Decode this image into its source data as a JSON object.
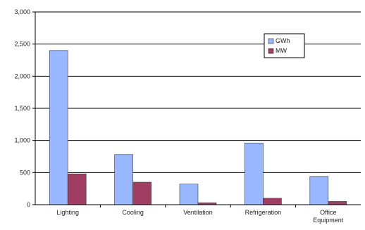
{
  "chart_data": {
    "type": "bar",
    "title": "",
    "xlabel": "",
    "ylabel": "",
    "categories": [
      "Lighting",
      "Cooling",
      "Ventilation",
      "Refrigeration",
      "Office Equipment"
    ],
    "series": [
      {
        "name": "GWh",
        "values": [
          2400,
          780,
          320,
          960,
          440
        ],
        "color": "#99b8ff"
      },
      {
        "name": "MW",
        "values": [
          480,
          350,
          30,
          100,
          50
        ],
        "color": "#a13c63"
      }
    ],
    "ylim": [
      0,
      3000
    ],
    "yticks": [
      0,
      500,
      1000,
      1500,
      2000,
      2500,
      3000
    ],
    "ytick_labels": [
      "0",
      "500",
      "1,000",
      "1,500",
      "2,000",
      "2,500",
      "3,000"
    ],
    "grid": true,
    "legend_position": "top-right"
  }
}
